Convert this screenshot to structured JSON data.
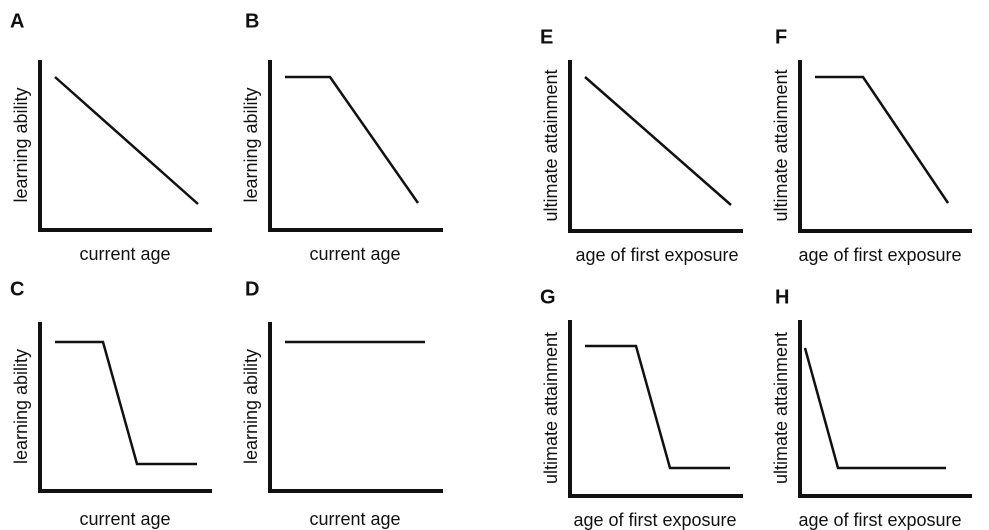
{
  "panels": [
    {
      "letter": "A",
      "y_label": "learning ability",
      "x_label": "current age"
    },
    {
      "letter": "B",
      "y_label": "learning ability",
      "x_label": "current age"
    },
    {
      "letter": "C",
      "y_label": "learning ability",
      "x_label": "current age"
    },
    {
      "letter": "D",
      "y_label": "learning ability",
      "x_label": "current age"
    },
    {
      "letter": "E",
      "y_label": "ultimate attainment",
      "x_label": "age of first exposure"
    },
    {
      "letter": "F",
      "y_label": "ultimate attainment",
      "x_label": "age of first exposure"
    },
    {
      "letter": "G",
      "y_label": "ultimate attainment",
      "x_label": "age of first exposure"
    },
    {
      "letter": "H",
      "y_label": "ultimate attainment",
      "x_label": "age of first exposure"
    }
  ]
}
